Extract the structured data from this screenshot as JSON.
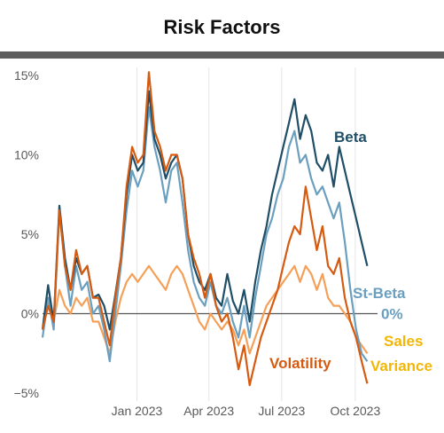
{
  "title": "Risk Factors",
  "colors": {
    "beta": "#1f4e66",
    "st_beta": "#6a9fbf",
    "volatility": "#d65a0f",
    "sales_variance": "#f5a058",
    "zero_line": "#555555",
    "grid": "#e6e6e6"
  },
  "chart_data": {
    "type": "line",
    "title": "Risk Factors",
    "xlabel": "",
    "ylabel": "",
    "x_range": [
      "2022-09-05",
      "2023-10-20"
    ],
    "ylim": [
      -5.5,
      15.5
    ],
    "y_ticks": [
      -5,
      0,
      5,
      10,
      15
    ],
    "y_tick_labels": [
      "−5%",
      "0%",
      "5%",
      "10%",
      "15%"
    ],
    "x_ticks": [
      "2023-01-01",
      "2023-04-01",
      "2023-07-01",
      "2023-10-01"
    ],
    "x_tick_labels": [
      "Jan 2023",
      "Apr 2023",
      "Jul 2023",
      "Oct 2023"
    ],
    "grid": "vertical",
    "zero_line": true,
    "zero_label": "0%",
    "series": [
      {
        "name": "Beta",
        "key": "beta",
        "points": [
          [
            "2022-09-05",
            -1.0
          ],
          [
            "2022-09-12",
            1.8
          ],
          [
            "2022-09-19",
            -0.5
          ],
          [
            "2022-09-26",
            6.8
          ],
          [
            "2022-10-03",
            3.5
          ],
          [
            "2022-10-10",
            1.5
          ],
          [
            "2022-10-17",
            3.5
          ],
          [
            "2022-10-24",
            2.5
          ],
          [
            "2022-10-31",
            3.0
          ],
          [
            "2022-11-07",
            1.0
          ],
          [
            "2022-11-14",
            1.2
          ],
          [
            "2022-11-21",
            0.5
          ],
          [
            "2022-11-28",
            -1.0
          ],
          [
            "2022-12-05",
            1.2
          ],
          [
            "2022-12-12",
            3.5
          ],
          [
            "2022-12-19",
            7.5
          ],
          [
            "2022-12-26",
            10.0
          ],
          [
            "2023-01-02",
            9.0
          ],
          [
            "2023-01-09",
            9.5
          ],
          [
            "2023-01-16",
            14.0
          ],
          [
            "2023-01-23",
            11.0
          ],
          [
            "2023-01-30",
            10.0
          ],
          [
            "2023-02-06",
            8.5
          ],
          [
            "2023-02-13",
            9.5
          ],
          [
            "2023-02-20",
            10.0
          ],
          [
            "2023-02-27",
            8.5
          ],
          [
            "2023-03-06",
            5.0
          ],
          [
            "2023-03-13",
            3.0
          ],
          [
            "2023-03-20",
            2.0
          ],
          [
            "2023-03-27",
            1.5
          ],
          [
            "2023-04-03",
            2.5
          ],
          [
            "2023-04-10",
            1.0
          ],
          [
            "2023-04-17",
            0.5
          ],
          [
            "2023-04-24",
            2.5
          ],
          [
            "2023-05-01",
            0.8
          ],
          [
            "2023-05-08",
            0.0
          ],
          [
            "2023-05-15",
            1.5
          ],
          [
            "2023-05-22",
            -0.5
          ],
          [
            "2023-05-29",
            2.0
          ],
          [
            "2023-06-05",
            4.0
          ],
          [
            "2023-06-12",
            5.5
          ],
          [
            "2023-06-19",
            7.5
          ],
          [
            "2023-06-26",
            9.0
          ],
          [
            "2023-07-03",
            10.5
          ],
          [
            "2023-07-10",
            12.0
          ],
          [
            "2023-07-17",
            13.5
          ],
          [
            "2023-07-24",
            11.0
          ],
          [
            "2023-07-31",
            12.5
          ],
          [
            "2023-08-07",
            11.5
          ],
          [
            "2023-08-14",
            9.5
          ],
          [
            "2023-08-21",
            9.0
          ],
          [
            "2023-08-28",
            10.0
          ],
          [
            "2023-09-04",
            8.0
          ],
          [
            "2023-09-11",
            10.5
          ],
          [
            "2023-09-18",
            9.0
          ],
          [
            "2023-09-25",
            7.5
          ],
          [
            "2023-10-02",
            6.0
          ],
          [
            "2023-10-09",
            4.5
          ],
          [
            "2023-10-16",
            3.0
          ]
        ]
      },
      {
        "name": "St-Beta",
        "key": "st_beta",
        "points": [
          [
            "2022-09-05",
            -1.5
          ],
          [
            "2022-09-12",
            1.0
          ],
          [
            "2022-09-19",
            -1.0
          ],
          [
            "2022-09-26",
            6.5
          ],
          [
            "2022-10-03",
            3.0
          ],
          [
            "2022-10-10",
            0.5
          ],
          [
            "2022-10-17",
            3.0
          ],
          [
            "2022-10-24",
            1.5
          ],
          [
            "2022-10-31",
            2.0
          ],
          [
            "2022-11-07",
            0.0
          ],
          [
            "2022-11-14",
            0.5
          ],
          [
            "2022-11-21",
            -1.0
          ],
          [
            "2022-11-28",
            -3.0
          ],
          [
            "2022-12-05",
            0.0
          ],
          [
            "2022-12-12",
            3.0
          ],
          [
            "2022-12-19",
            6.5
          ],
          [
            "2022-12-26",
            9.0
          ],
          [
            "2023-01-02",
            8.0
          ],
          [
            "2023-01-09",
            9.0
          ],
          [
            "2023-01-16",
            13.0
          ],
          [
            "2023-01-23",
            10.5
          ],
          [
            "2023-01-30",
            9.0
          ],
          [
            "2023-02-06",
            7.0
          ],
          [
            "2023-02-13",
            9.0
          ],
          [
            "2023-02-20",
            9.5
          ],
          [
            "2023-02-27",
            7.0
          ],
          [
            "2023-03-06",
            4.0
          ],
          [
            "2023-03-13",
            2.0
          ],
          [
            "2023-03-20",
            1.0
          ],
          [
            "2023-03-27",
            0.5
          ],
          [
            "2023-04-03",
            2.0
          ],
          [
            "2023-04-10",
            0.5
          ],
          [
            "2023-04-17",
            0.0
          ],
          [
            "2023-04-24",
            1.0
          ],
          [
            "2023-05-01",
            -0.5
          ],
          [
            "2023-05-08",
            -1.5
          ],
          [
            "2023-05-15",
            0.5
          ],
          [
            "2023-05-22",
            -1.5
          ],
          [
            "2023-05-29",
            1.0
          ],
          [
            "2023-06-05",
            3.0
          ],
          [
            "2023-06-12",
            5.0
          ],
          [
            "2023-06-19",
            6.0
          ],
          [
            "2023-06-26",
            7.5
          ],
          [
            "2023-07-03",
            8.5
          ],
          [
            "2023-07-10",
            10.5
          ],
          [
            "2023-07-17",
            11.5
          ],
          [
            "2023-07-24",
            9.5
          ],
          [
            "2023-07-31",
            10.0
          ],
          [
            "2023-08-07",
            8.5
          ],
          [
            "2023-08-14",
            7.5
          ],
          [
            "2023-08-21",
            8.0
          ],
          [
            "2023-08-28",
            7.0
          ],
          [
            "2023-09-04",
            6.0
          ],
          [
            "2023-09-11",
            7.0
          ],
          [
            "2023-09-18",
            4.5
          ],
          [
            "2023-09-25",
            1.5
          ],
          [
            "2023-10-02",
            -1.0
          ],
          [
            "2023-10-09",
            -2.5
          ],
          [
            "2023-10-16",
            -3.0
          ]
        ]
      },
      {
        "name": "Volatility",
        "key": "volatility",
        "points": [
          [
            "2022-09-05",
            -1.0
          ],
          [
            "2022-09-12",
            0.5
          ],
          [
            "2022-09-19",
            -0.5
          ],
          [
            "2022-09-26",
            6.5
          ],
          [
            "2022-10-03",
            3.0
          ],
          [
            "2022-10-10",
            1.5
          ],
          [
            "2022-10-17",
            4.0
          ],
          [
            "2022-10-24",
            2.5
          ],
          [
            "2022-10-31",
            3.0
          ],
          [
            "2022-11-07",
            1.0
          ],
          [
            "2022-11-14",
            1.0
          ],
          [
            "2022-11-21",
            -0.5
          ],
          [
            "2022-11-28",
            -2.0
          ],
          [
            "2022-12-05",
            1.0
          ],
          [
            "2022-12-12",
            3.5
          ],
          [
            "2022-12-19",
            8.0
          ],
          [
            "2022-12-26",
            10.5
          ],
          [
            "2023-01-02",
            9.5
          ],
          [
            "2023-01-09",
            10.0
          ],
          [
            "2023-01-16",
            15.2
          ],
          [
            "2023-01-23",
            11.5
          ],
          [
            "2023-01-30",
            10.5
          ],
          [
            "2023-02-06",
            9.0
          ],
          [
            "2023-02-13",
            10.0
          ],
          [
            "2023-02-20",
            10.0
          ],
          [
            "2023-02-27",
            8.5
          ],
          [
            "2023-03-06",
            5.0
          ],
          [
            "2023-03-13",
            3.5
          ],
          [
            "2023-03-20",
            2.5
          ],
          [
            "2023-03-27",
            1.0
          ],
          [
            "2023-04-03",
            2.5
          ],
          [
            "2023-04-10",
            0.5
          ],
          [
            "2023-04-17",
            -0.5
          ],
          [
            "2023-04-24",
            0.0
          ],
          [
            "2023-05-01",
            -1.5
          ],
          [
            "2023-05-08",
            -3.5
          ],
          [
            "2023-05-15",
            -2.0
          ],
          [
            "2023-05-22",
            -4.5
          ],
          [
            "2023-05-29",
            -3.0
          ],
          [
            "2023-06-05",
            -1.5
          ],
          [
            "2023-06-12",
            -0.5
          ],
          [
            "2023-06-19",
            0.5
          ],
          [
            "2023-06-26",
            1.5
          ],
          [
            "2023-07-03",
            3.0
          ],
          [
            "2023-07-10",
            4.5
          ],
          [
            "2023-07-17",
            5.5
          ],
          [
            "2023-07-24",
            5.0
          ],
          [
            "2023-07-31",
            8.0
          ],
          [
            "2023-08-07",
            6.0
          ],
          [
            "2023-08-14",
            4.0
          ],
          [
            "2023-08-21",
            5.5
          ],
          [
            "2023-08-28",
            3.0
          ],
          [
            "2023-09-04",
            2.5
          ],
          [
            "2023-09-11",
            3.5
          ],
          [
            "2023-09-18",
            1.0
          ],
          [
            "2023-09-25",
            -0.5
          ],
          [
            "2023-10-02",
            -1.5
          ],
          [
            "2023-10-09",
            -3.0
          ],
          [
            "2023-10-16",
            -4.4
          ]
        ]
      },
      {
        "name": "Sales Variance",
        "key": "sales_variance",
        "points": [
          [
            "2022-09-05",
            -1.0
          ],
          [
            "2022-09-12",
            0.5
          ],
          [
            "2022-09-19",
            -0.5
          ],
          [
            "2022-09-26",
            1.5
          ],
          [
            "2022-10-03",
            0.5
          ],
          [
            "2022-10-10",
            0.0
          ],
          [
            "2022-10-17",
            1.0
          ],
          [
            "2022-10-24",
            0.5
          ],
          [
            "2022-10-31",
            1.0
          ],
          [
            "2022-11-07",
            -0.5
          ],
          [
            "2022-11-14",
            -0.5
          ],
          [
            "2022-11-21",
            -1.5
          ],
          [
            "2022-11-28",
            -2.5
          ],
          [
            "2022-12-05",
            -0.5
          ],
          [
            "2022-12-12",
            1.0
          ],
          [
            "2022-12-19",
            2.0
          ],
          [
            "2022-12-26",
            2.5
          ],
          [
            "2023-01-02",
            2.0
          ],
          [
            "2023-01-09",
            2.5
          ],
          [
            "2023-01-16",
            3.0
          ],
          [
            "2023-01-23",
            2.5
          ],
          [
            "2023-01-30",
            2.0
          ],
          [
            "2023-02-06",
            1.5
          ],
          [
            "2023-02-13",
            2.5
          ],
          [
            "2023-02-20",
            3.0
          ],
          [
            "2023-02-27",
            2.5
          ],
          [
            "2023-03-06",
            1.5
          ],
          [
            "2023-03-13",
            0.5
          ],
          [
            "2023-03-20",
            -0.5
          ],
          [
            "2023-03-27",
            -1.0
          ],
          [
            "2023-04-03",
            0.0
          ],
          [
            "2023-04-10",
            -0.5
          ],
          [
            "2023-04-17",
            -1.0
          ],
          [
            "2023-04-24",
            -0.5
          ],
          [
            "2023-05-01",
            -1.0
          ],
          [
            "2023-05-08",
            -2.0
          ],
          [
            "2023-05-15",
            -1.0
          ],
          [
            "2023-05-22",
            -2.5
          ],
          [
            "2023-05-29",
            -1.5
          ],
          [
            "2023-06-05",
            -0.5
          ],
          [
            "2023-06-12",
            0.5
          ],
          [
            "2023-06-19",
            1.0
          ],
          [
            "2023-06-26",
            1.5
          ],
          [
            "2023-07-03",
            2.0
          ],
          [
            "2023-07-10",
            2.5
          ],
          [
            "2023-07-17",
            3.0
          ],
          [
            "2023-07-24",
            2.0
          ],
          [
            "2023-07-31",
            3.0
          ],
          [
            "2023-08-07",
            2.5
          ],
          [
            "2023-08-14",
            1.5
          ],
          [
            "2023-08-21",
            2.5
          ],
          [
            "2023-08-28",
            1.0
          ],
          [
            "2023-09-04",
            0.5
          ],
          [
            "2023-09-11",
            0.5
          ],
          [
            "2023-09-18",
            0.0
          ],
          [
            "2023-09-25",
            -0.5
          ],
          [
            "2023-10-02",
            -1.5
          ],
          [
            "2023-10-09",
            -2.0
          ],
          [
            "2023-10-16",
            -2.5
          ]
        ]
      }
    ]
  }
}
